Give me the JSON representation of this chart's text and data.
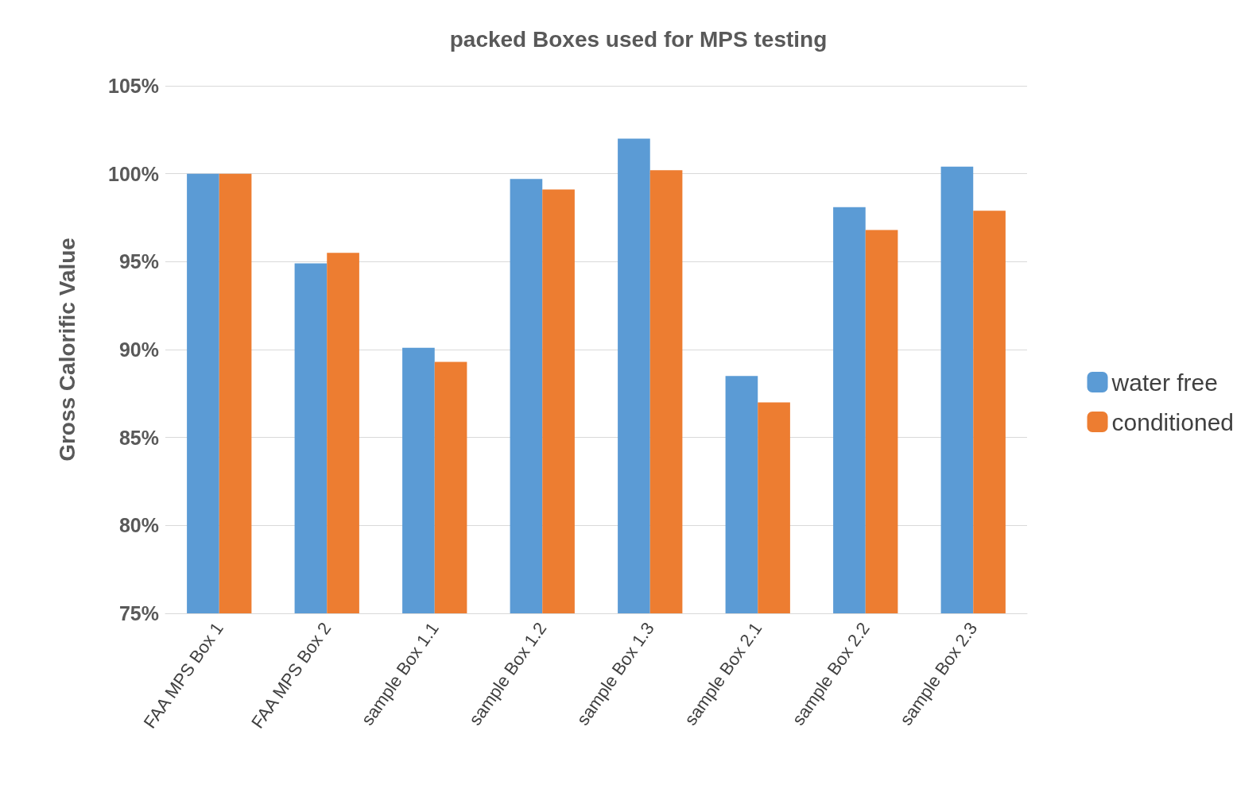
{
  "chart_data": {
    "type": "bar",
    "title": "packed Boxes used for MPS testing",
    "ylabel": "Gross Calorific Value",
    "categories": [
      "FAA MPS Box 1",
      "FAA MPS Box 2",
      "sample Box 1.1",
      "sample Box 1.2",
      "sample Box 1.3",
      "sample Box 2.1",
      "sample Box 2.2",
      "sample Box 2.3"
    ],
    "series": [
      {
        "name": "water free",
        "color": "#5b9bd5",
        "values": [
          100,
          94.9,
          90.1,
          99.7,
          102.0,
          88.5,
          98.1,
          100.4
        ]
      },
      {
        "name": "conditioned",
        "color": "#ed7d31",
        "values": [
          100,
          95.5,
          89.3,
          99.1,
          100.2,
          87.0,
          96.8,
          97.9
        ]
      }
    ],
    "ylim": [
      75,
      105
    ],
    "yticks": [
      {
        "value": 75,
        "label": "75%"
      },
      {
        "value": 80,
        "label": "80%"
      },
      {
        "value": 85,
        "label": "85%"
      },
      {
        "value": 90,
        "label": "90%"
      },
      {
        "value": 95,
        "label": "95%"
      },
      {
        "value": 100,
        "label": "100%"
      },
      {
        "value": 105,
        "label": "105%"
      }
    ],
    "grid": "y",
    "legend": "right"
  }
}
